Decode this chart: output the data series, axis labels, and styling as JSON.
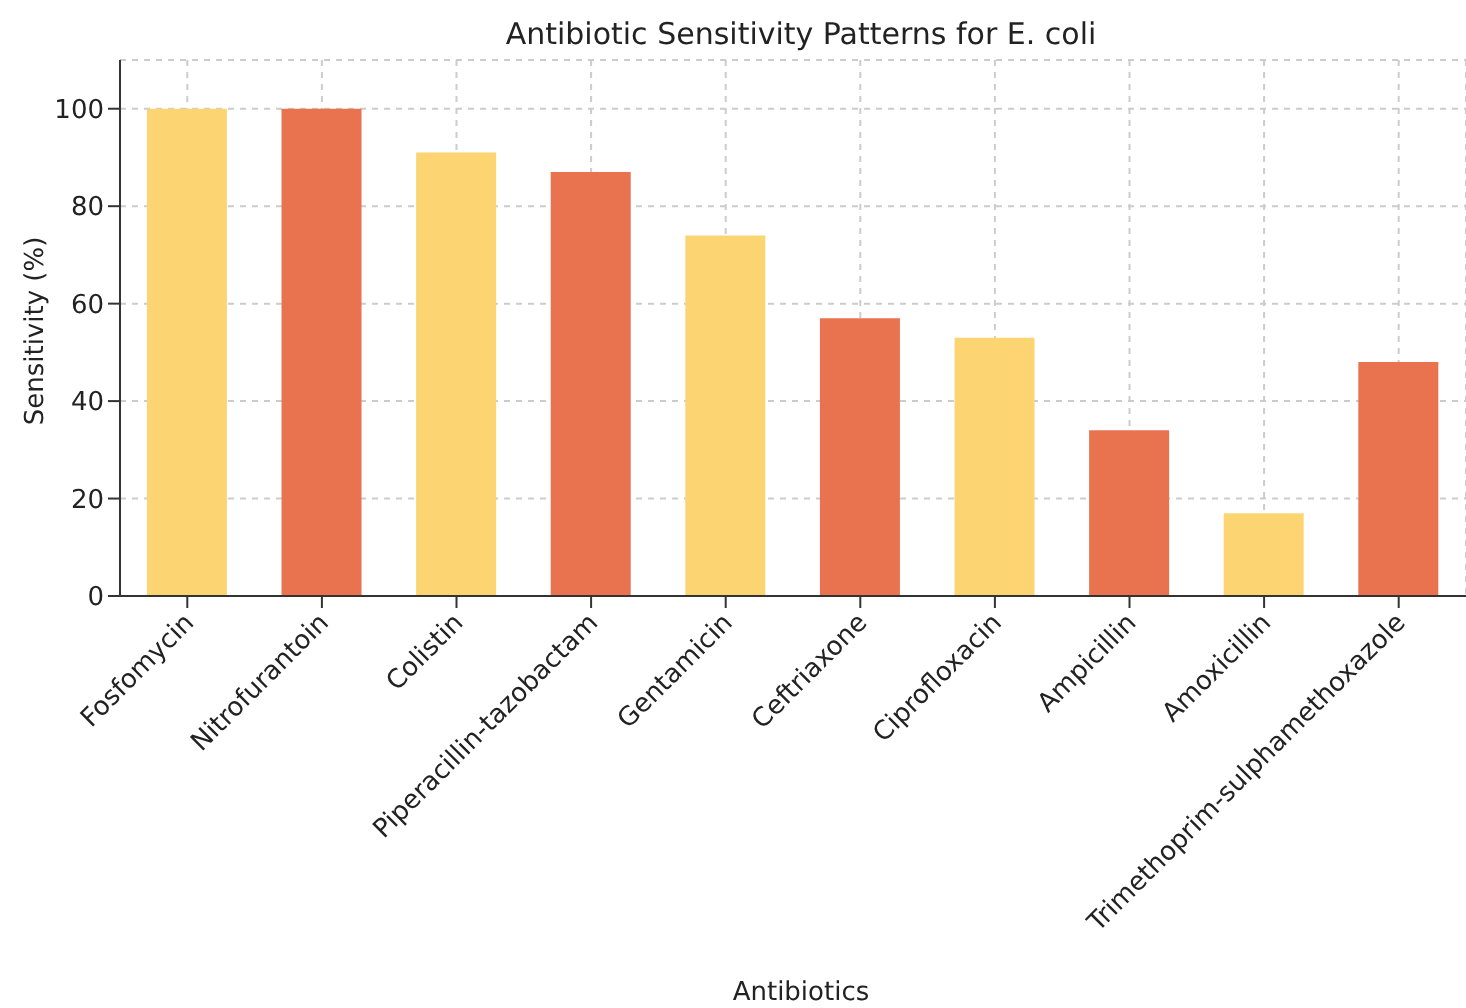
{
  "chart_data": {
    "type": "bar",
    "title": "Antibiotic Sensitivity Patterns for E. coli",
    "xlabel": "Antibiotics",
    "ylabel": "Sensitivity (%)",
    "categories": [
      "Fosfomycin",
      "Nitrofurantoin",
      "Colistin",
      "Piperacillin-tazobactam",
      "Gentamicin",
      "Ceftriaxone",
      "Ciprofloxacin",
      "Ampicillin",
      "Amoxicillin",
      "Trimethoprim-sulphamethoxazole"
    ],
    "values": [
      100,
      100,
      91,
      87,
      74,
      57,
      53,
      34,
      17,
      48
    ],
    "colors": [
      "#fdd472",
      "#e8734e",
      "#fdd472",
      "#e8734e",
      "#fdd472",
      "#e8734e",
      "#fdd472",
      "#e8734e",
      "#fdd472",
      "#e8734e"
    ],
    "ylim": [
      0,
      110
    ],
    "yticks": [
      0,
      20,
      40,
      60,
      80,
      100
    ],
    "grid": true
  }
}
